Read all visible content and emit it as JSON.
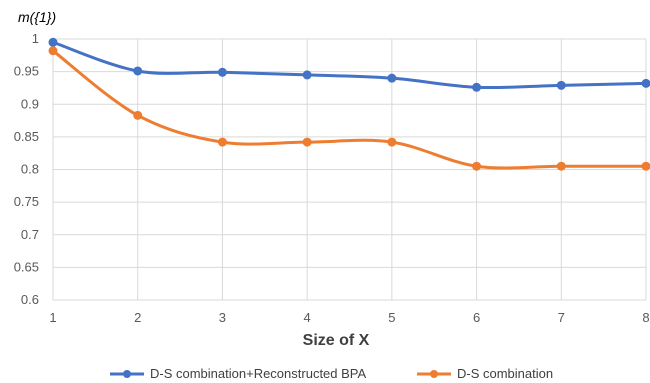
{
  "chart_data": {
    "type": "line",
    "title": "",
    "ylabel": "m({1})",
    "xlabel": "Size of  X",
    "x": [
      1,
      2,
      3,
      4,
      5,
      6,
      7,
      8
    ],
    "ylim": [
      0.6,
      1
    ],
    "yticks": [
      "0.6",
      "0.65",
      "0.7",
      "0.75",
      "0.8",
      "0.85",
      "0.9",
      "0.95",
      "1"
    ],
    "grid": true,
    "legend_position": "bottom",
    "smoothed": true,
    "series": [
      {
        "name": "D-S combination+Reconstructed BPA",
        "color": "#4472C4",
        "values": [
          0.995,
          0.951,
          0.949,
          0.945,
          0.94,
          0.926,
          0.929,
          0.932
        ]
      },
      {
        "name": "D-S combination",
        "color": "#ED7D31",
        "values": [
          0.982,
          0.883,
          0.842,
          0.842,
          0.842,
          0.805,
          0.805,
          0.805
        ]
      }
    ]
  }
}
